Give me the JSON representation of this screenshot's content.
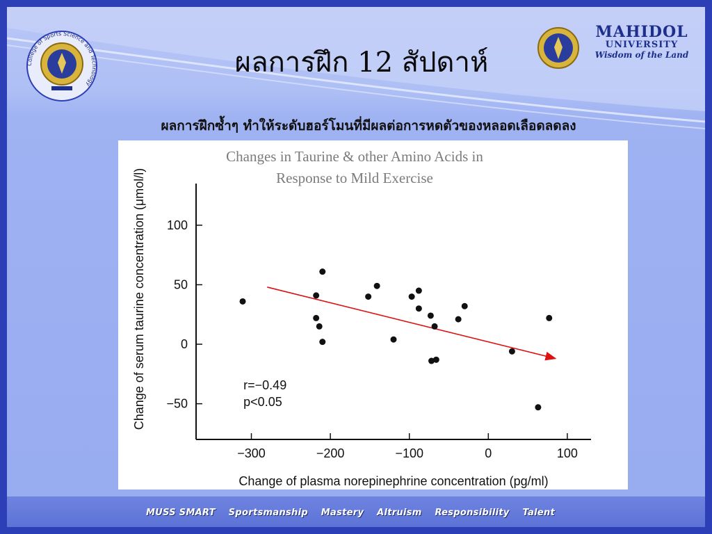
{
  "header": {
    "title": "ผลการฝึก 12 สัปดาห์",
    "subtitle": "ผลการฝึกซ้ำๆ ทำให้ระดับฮอร์โมนที่มีผลต่อการหดตัวของหลอดเลือดลดลง"
  },
  "logos": {
    "left_ring_text": "College of Sports Science and Technology",
    "brand_name": "MAHIDOL",
    "brand_sub": "UNIVERSITY",
    "brand_tagline": "Wisdom of the Land"
  },
  "footer": {
    "items": [
      "MUSS SMART",
      "Sportsmanship",
      "Mastery",
      "Altruism",
      "Responsibility",
      "Talent"
    ]
  },
  "colors": {
    "frame": "#2d3fb6",
    "background": "#97abf0",
    "trend_line": "#dd1111",
    "points": "#111111"
  },
  "chart_data": {
    "type": "scatter",
    "title": "Changes in Taurine & other Amino Acids in Response to Mild Exercise",
    "title_lines": [
      "Changes in Taurine & other Amino Acids in",
      "Response to Mild Exercise"
    ],
    "xlabel": "Change of plasma norepinephrine concentration  (pg/ml)",
    "ylabel": "Change of serum taurine concentration  (μmol/l)",
    "xlim": [
      -370,
      130
    ],
    "ylim": [
      -80,
      135
    ],
    "x_ticks": [
      -300,
      -200,
      -100,
      0,
      100
    ],
    "x_tick_labels": [
      "−300",
      "−200",
      "−100",
      "0",
      "100"
    ],
    "y_ticks": [
      -50,
      0,
      50,
      100
    ],
    "y_tick_labels": [
      "−50",
      "0",
      "50",
      "100"
    ],
    "points": [
      {
        "x": -311,
        "y": 36
      },
      {
        "x": -210,
        "y": 61
      },
      {
        "x": -218,
        "y": 41
      },
      {
        "x": -218,
        "y": 22
      },
      {
        "x": -214,
        "y": 15
      },
      {
        "x": -210,
        "y": 2
      },
      {
        "x": -152,
        "y": 40
      },
      {
        "x": -141,
        "y": 49
      },
      {
        "x": -120,
        "y": 4
      },
      {
        "x": -97,
        "y": 40
      },
      {
        "x": -88,
        "y": 45
      },
      {
        "x": -88,
        "y": 30
      },
      {
        "x": -73,
        "y": 24
      },
      {
        "x": -68,
        "y": 15
      },
      {
        "x": -72,
        "y": -14
      },
      {
        "x": -66,
        "y": -13
      },
      {
        "x": -38,
        "y": 21
      },
      {
        "x": -30,
        "y": 32
      },
      {
        "x": 30,
        "y": -6
      },
      {
        "x": 63,
        "y": -53
      },
      {
        "x": 77,
        "y": 22
      }
    ],
    "trend": {
      "x1": -280,
      "y1": 48,
      "x2": 85,
      "y2": -12
    },
    "annotations": [
      "r=−0.49",
      "p<0.05"
    ],
    "grid": false,
    "legend": "none"
  }
}
